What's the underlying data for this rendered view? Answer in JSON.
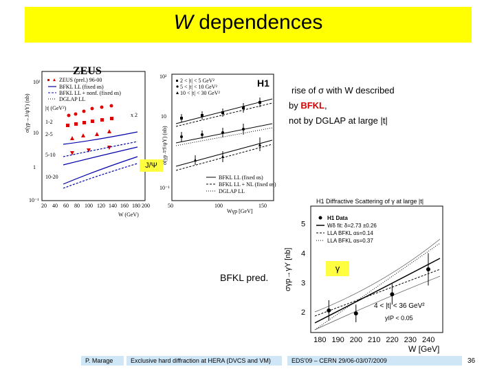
{
  "title": {
    "italic": "W",
    "rest": " dependences"
  },
  "text_right": {
    "line1_pre": "rise of ",
    "sigma": "σ",
    "line1_post": " with W described",
    "line2_pre": "by ",
    "line2_bfkl": "BFKL",
    "line2_post": ",",
    "line3": "not by DGLAP at large |t|"
  },
  "jpsi_label": "J/Ψ",
  "bfkl_pred": "BFKL pred.",
  "gamma_label": "γ",
  "zeus_plot": {
    "header": "ZEUS",
    "ylabel": "σ(γp→J/ψY) (nb)",
    "xlabel": "W (GeV)",
    "legend": [
      "ZEUS (prel.) 96-00",
      "BFKL LL (fixed αs)",
      "BFKL LL + nonf. (fixed αs)",
      "DGLAP LL"
    ],
    "x2": "x 2",
    "t_label": "|t| (GeV²)",
    "bins": [
      "1-2",
      "2-5",
      "5-10",
      "10-20"
    ],
    "yticks": [
      "10²",
      "10",
      "1",
      "10⁻¹"
    ],
    "xticks": [
      "20",
      "40",
      "60",
      "80",
      "100",
      "120",
      "140",
      "160",
      "180",
      "200"
    ]
  },
  "h1_plot": {
    "header": "H1",
    "ylabel": "σ(γp→J/ψY) (nb)",
    "xlabel": "Wγp [GeV]",
    "legend": [
      "2 < |t| < 5 GeV²",
      "5 < |t| < 10 GeV²",
      "10 < |t| < 30 GeV²"
    ],
    "legend2": [
      "BFKL LL (fixed αs)",
      "BFKL LL + NL (fixed αs)",
      "DGLAP LL"
    ],
    "yticks": [
      "10²",
      "10",
      "1",
      "10⁻¹"
    ],
    "xticks": [
      "50",
      "100",
      "150"
    ]
  },
  "gamma_plot": {
    "title": "H1 Diffractive Scattering of γ at large |t|",
    "ylabel": "σγp→γY [nb]",
    "xlabel": "W [GeV]",
    "legend": [
      "H1 Data",
      "Wδ fit: δ=2.73 ±0.26",
      "LLA BFKL αs=0.14",
      "LLA BFKL αs=0.37"
    ],
    "cut1": "4 < |t| < 36 GeV²",
    "cut2": "yIP < 0.05",
    "yticks": [
      "5",
      "4",
      "3",
      "2"
    ],
    "xticks": [
      "180",
      "190",
      "200",
      "210",
      "220",
      "230",
      "240"
    ]
  },
  "chart_data": {
    "type": "scatter",
    "title": "H1 Diffractive Scattering of γ at large |t|",
    "xlabel": "W [GeV]",
    "ylabel": "σγp→γY [nb]",
    "xlim": [
      175,
      248
    ],
    "ylim": [
      1.3,
      5.6
    ],
    "x": [
      185,
      200,
      220,
      240
    ],
    "y": [
      2.05,
      1.95,
      2.6,
      3.45
    ]
  },
  "footer": {
    "author": "P. Marage",
    "talk": "Exclusive hard diffraction at HERA (DVCS and VM)",
    "conf": "EDS'09 – CERN 29/06-03/07/2009",
    "page": "36"
  }
}
